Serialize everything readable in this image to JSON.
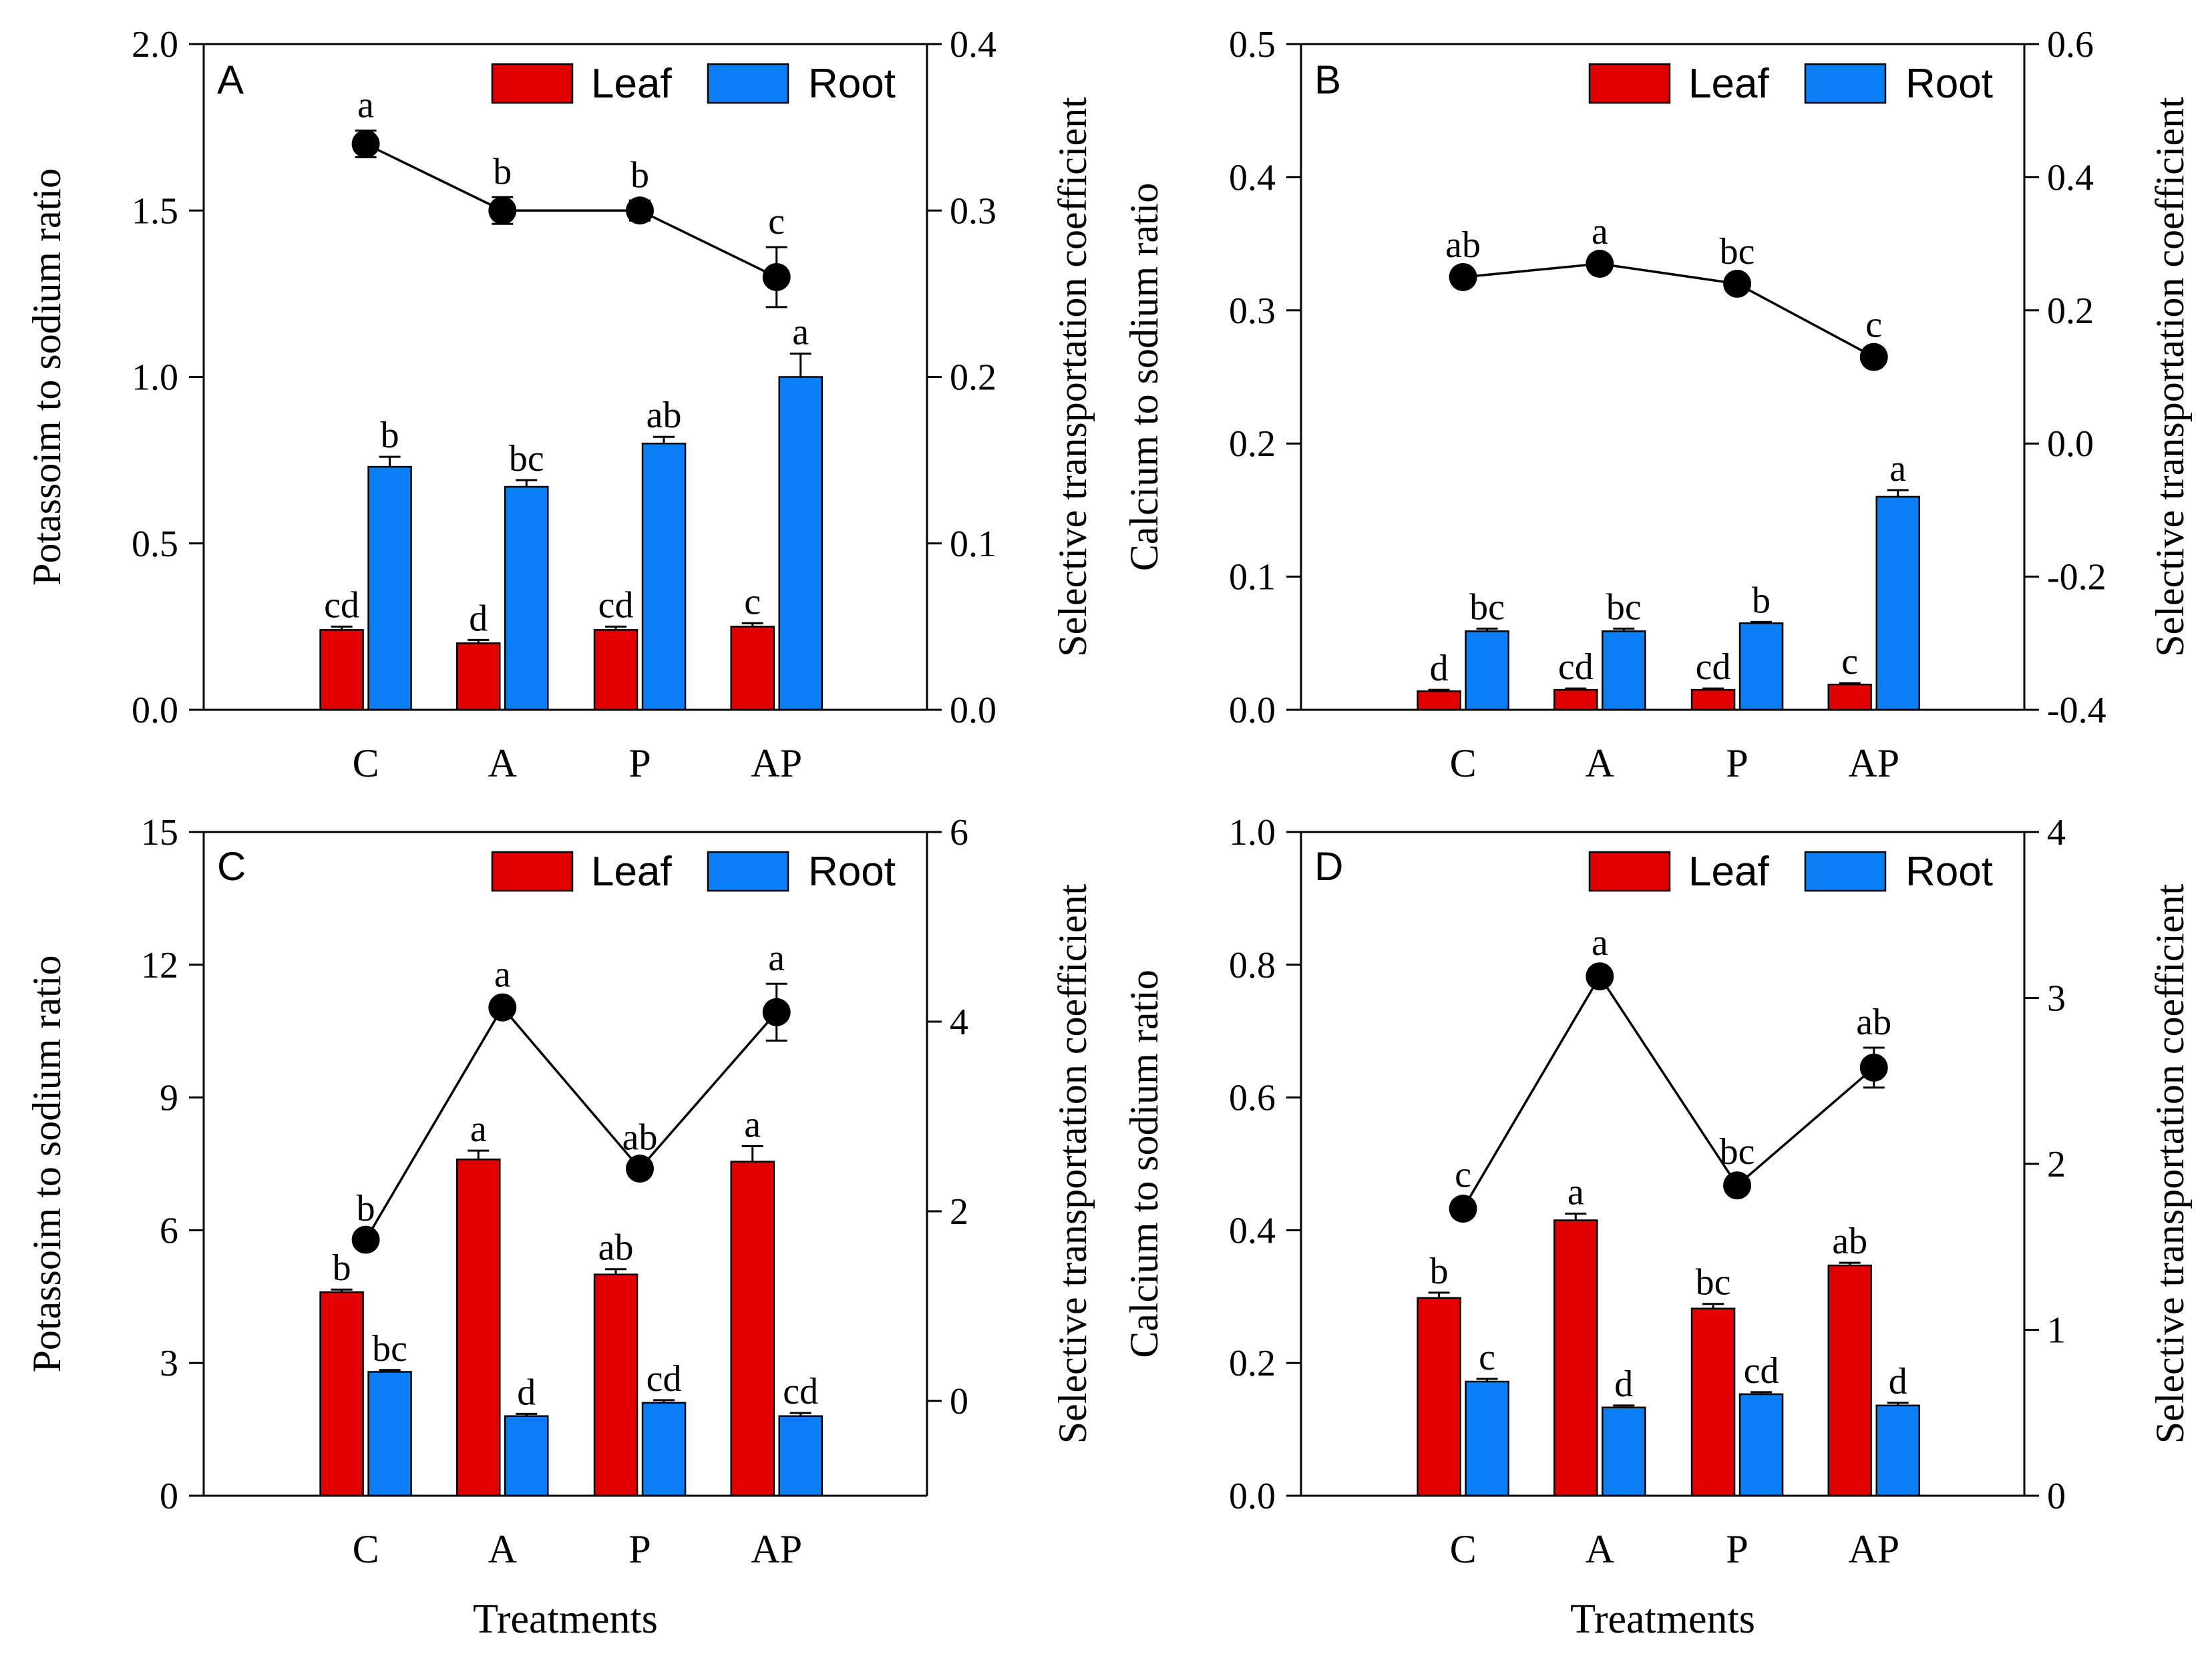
{
  "chart_data": [
    {
      "panel": "A",
      "type": "bar",
      "categories": [
        "C",
        "A",
        "P",
        "AP"
      ],
      "ylabel": "Potassoim to sodium ratio",
      "y2label": "Selective transportation coefficient",
      "xlabel": "",
      "ylim": [
        0,
        2.0
      ],
      "yticks": [
        "0.0",
        "0.5",
        "1.0",
        "1.5",
        "2.0"
      ],
      "y2lim": [
        0,
        0.4
      ],
      "y2ticks": [
        "0.0",
        "0.1",
        "0.2",
        "0.3",
        "0.4"
      ],
      "series": [
        {
          "name": "Leaf",
          "values": [
            0.24,
            0.2,
            0.24,
            0.25
          ],
          "errors": [
            0.01,
            0.01,
            0.01,
            0.01
          ],
          "letters": [
            "cd",
            "d",
            "cd",
            "c"
          ]
        },
        {
          "name": "Root",
          "values": [
            0.73,
            0.67,
            0.8,
            1.0
          ],
          "errors": [
            0.03,
            0.02,
            0.02,
            0.07
          ],
          "letters": [
            "b",
            "bc",
            "ab",
            "a"
          ]
        }
      ],
      "line": {
        "name": "Selective transportation coefficient",
        "values": [
          0.34,
          0.3,
          0.3,
          0.26
        ],
        "errors": [
          0.008,
          0.008,
          0.006,
          0.018
        ],
        "letters": [
          "a",
          "b",
          "b",
          "c"
        ]
      }
    },
    {
      "panel": "B",
      "type": "bar",
      "categories": [
        "C",
        "A",
        "P",
        "AP"
      ],
      "ylabel": "Calcium to sodium ratio",
      "y2label": "Selective transportation coefficient",
      "xlabel": "",
      "ylim": [
        0,
        0.5
      ],
      "yticks": [
        "0.0",
        "0.1",
        "0.2",
        "0.3",
        "0.4",
        "0.5"
      ],
      "y2lim": [
        -0.4,
        0.6
      ],
      "y2ticks": [
        "-0.4",
        "-0.2",
        "0.0",
        "0.2",
        "0.4",
        "0.6"
      ],
      "series": [
        {
          "name": "Leaf",
          "values": [
            0.014,
            0.015,
            0.015,
            0.019
          ],
          "errors": [
            0.001,
            0.001,
            0.001,
            0.001
          ],
          "letters": [
            "d",
            "cd",
            "cd",
            "c"
          ]
        },
        {
          "name": "Root",
          "values": [
            0.059,
            0.059,
            0.065,
            0.16
          ],
          "errors": [
            0.002,
            0.002,
            0.001,
            0.005
          ],
          "letters": [
            "bc",
            "bc",
            "b",
            "a"
          ]
        }
      ],
      "line": {
        "name": "Selective transportation coefficient",
        "values": [
          0.25,
          0.27,
          0.24,
          0.13
        ],
        "errors": [
          0.01,
          0.01,
          0.01,
          0.01
        ],
        "letters": [
          "ab",
          "a",
          "bc",
          "c"
        ]
      }
    },
    {
      "panel": "C",
      "type": "bar",
      "categories": [
        "C",
        "A",
        "P",
        "AP"
      ],
      "ylabel": "Potassoim to sodium ratio",
      "y2label": "Selective transportation coefficient",
      "xlabel": "Treatments",
      "ylim": [
        0,
        15
      ],
      "yticks": [
        "0",
        "3",
        "6",
        "9",
        "12",
        "15"
      ],
      "y2lim": [
        -1,
        6
      ],
      "y2ticks": [
        "0",
        "2",
        "4",
        "6"
      ],
      "series": [
        {
          "name": "Leaf",
          "values": [
            4.6,
            7.6,
            5.0,
            7.55
          ],
          "errors": [
            0.06,
            0.2,
            0.12,
            0.35
          ],
          "letters": [
            "b",
            "a",
            "ab",
            "a"
          ]
        },
        {
          "name": "Root",
          "values": [
            2.8,
            1.8,
            2.1,
            1.8
          ],
          "errors": [
            0.04,
            0.05,
            0.06,
            0.07
          ],
          "letters": [
            "bc",
            "d",
            "cd",
            "cd"
          ]
        }
      ],
      "line": {
        "name": "Selective transportation coefficient",
        "values": [
          1.7,
          4.15,
          2.45,
          4.1
        ],
        "errors": [
          0.06,
          0.08,
          0.06,
          0.3
        ],
        "letters": [
          "b",
          "a",
          "ab",
          "a"
        ]
      }
    },
    {
      "panel": "D",
      "type": "bar",
      "categories": [
        "C",
        "A",
        "P",
        "AP"
      ],
      "ylabel": "Calcium to sodium ratio",
      "y2label": "Selective transportation coefficient",
      "xlabel": "Treatments",
      "ylim": [
        0,
        1.0
      ],
      "yticks": [
        "0.0",
        "0.2",
        "0.4",
        "0.6",
        "0.8",
        "1.0"
      ],
      "y2lim": [
        0,
        4
      ],
      "y2ticks": [
        "0",
        "1",
        "2",
        "3",
        "4"
      ],
      "series": [
        {
          "name": "Leaf",
          "values": [
            0.298,
            0.415,
            0.282,
            0.347
          ],
          "errors": [
            0.008,
            0.01,
            0.007,
            0.004
          ],
          "letters": [
            "b",
            "a",
            "bc",
            "ab"
          ]
        },
        {
          "name": "Root",
          "values": [
            0.172,
            0.133,
            0.153,
            0.136
          ],
          "errors": [
            0.004,
            0.003,
            0.003,
            0.004
          ],
          "letters": [
            "c",
            "d",
            "cd",
            "d"
          ]
        }
      ],
      "line": {
        "name": "Selective transportation coefficient",
        "values": [
          1.73,
          3.13,
          1.87,
          2.58
        ],
        "errors": [
          0.05,
          0.05,
          0.05,
          0.12
        ],
        "letters": [
          "c",
          "a",
          "bc",
          "ab"
        ]
      }
    }
  ],
  "legend": {
    "leaf": "Leaf",
    "root": "Root"
  },
  "colors": {
    "leaf": "#e00000",
    "root": "#0a7ff5",
    "line": "#000000",
    "axis": "#000000"
  }
}
